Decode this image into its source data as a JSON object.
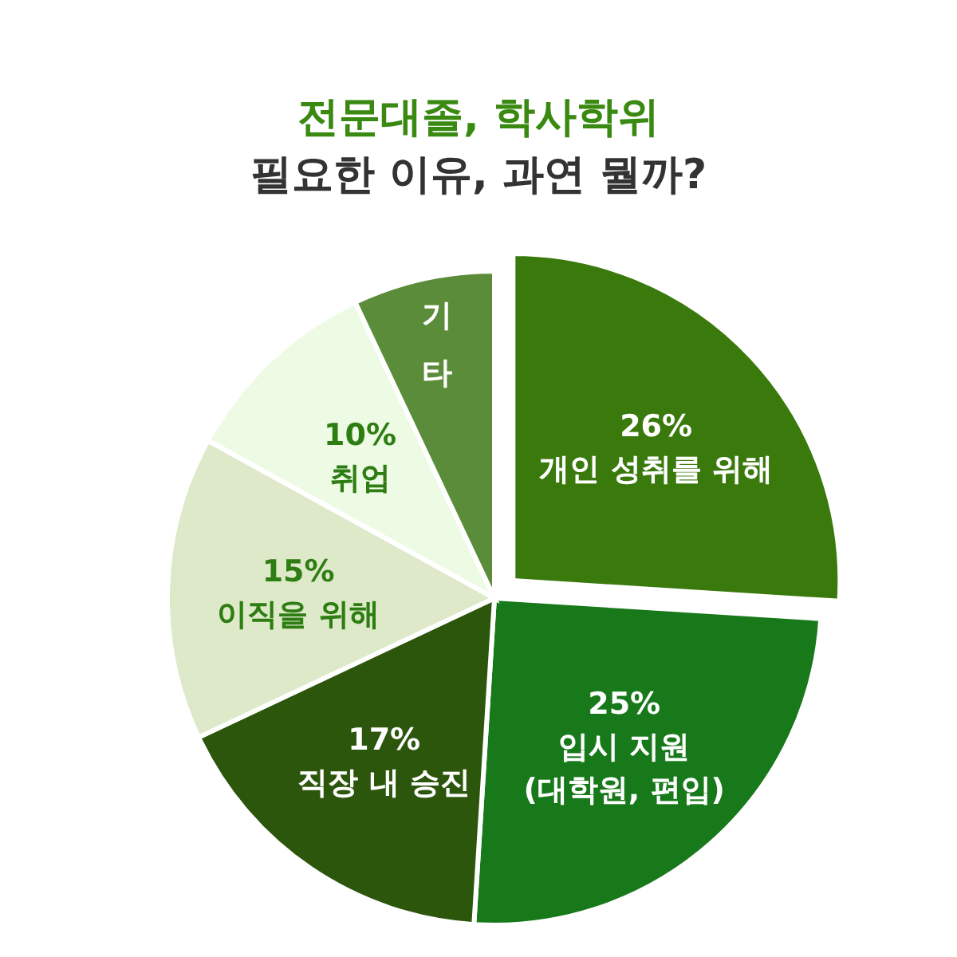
{
  "chart_data": {
    "type": "pie",
    "title": "전문대졸, 학사학위",
    "subtitle": "필요한 이유, 과연 뭘까?",
    "categories": [
      "개인 성취를 위해",
      "입시 지원 (대학원, 편입)",
      "직장 내 승진",
      "이직을 위해",
      "취업",
      "기타"
    ],
    "values": [
      26,
      25,
      17,
      15,
      10,
      7
    ],
    "value_labels": [
      "26%",
      "25%",
      "17%",
      "15%",
      "10%",
      null
    ],
    "colors": [
      "#3a7a0c",
      "#17791a",
      "#2c560c",
      "#dde9c8",
      "#eefbe4",
      "#5b8c3a"
    ]
  }
}
